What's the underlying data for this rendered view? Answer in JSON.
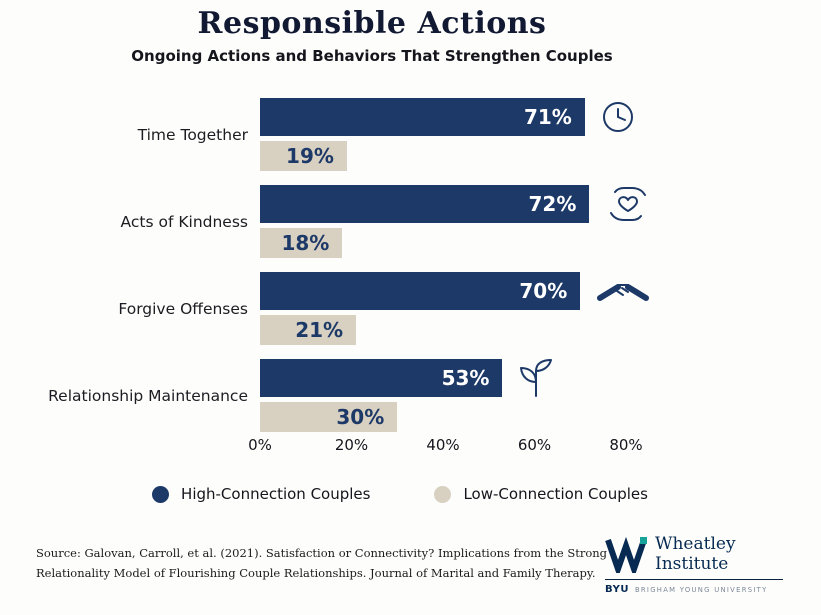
{
  "header": {
    "title": "Responsible Actions",
    "subtitle": "Ongoing Actions and Behaviors That Strengthen Couples"
  },
  "chart_data": {
    "type": "bar",
    "orientation": "horizontal",
    "title": "Responsible Actions",
    "subtitle": "Ongoing Actions and Behaviors That Strengthen Couples",
    "categories": [
      "Time Together",
      "Acts of Kindness",
      "Forgive Offenses",
      "Relationship Maintenance"
    ],
    "series": [
      {
        "name": "High-Connection Couples",
        "color": "#1d3968",
        "values": [
          71,
          72,
          70,
          53
        ]
      },
      {
        "name": "Low-Connection Couples",
        "color": "#d8d0c0",
        "values": [
          19,
          18,
          21,
          30
        ]
      }
    ],
    "x_ticks": [
      "0%",
      "20%",
      "40%",
      "60%",
      "80%"
    ],
    "xlim": [
      0,
      80
    ],
    "grid": false,
    "legend_position": "bottom",
    "icons": [
      "clock-icon",
      "hands-giving-heart-icon",
      "handshake-icon",
      "sprout-icon"
    ]
  },
  "legend": {
    "items": [
      {
        "label": "High-Connection Couples",
        "color": "#1d3968"
      },
      {
        "label": "Low-Connection Couples",
        "color": "#d8d0c0"
      }
    ]
  },
  "footer": {
    "source_line1": "Source: Galovan, Carroll, et al. (2021). Satisfaction or Connectivity? Implications from the Strong",
    "source_line2": "Relationality Model of Flourishing Couple Relationships. Journal of Marital and Family Therapy.",
    "logo": {
      "name_line1": "Wheatley",
      "name_line2": "Institute",
      "byu": "BYU",
      "university": "BRIGHAM YOUNG UNIVERSITY"
    }
  },
  "colors": {
    "navy": "#1d3968",
    "beige": "#d8d0c0",
    "teal_accent": "#17a398",
    "background": "#fdfdfb"
  }
}
